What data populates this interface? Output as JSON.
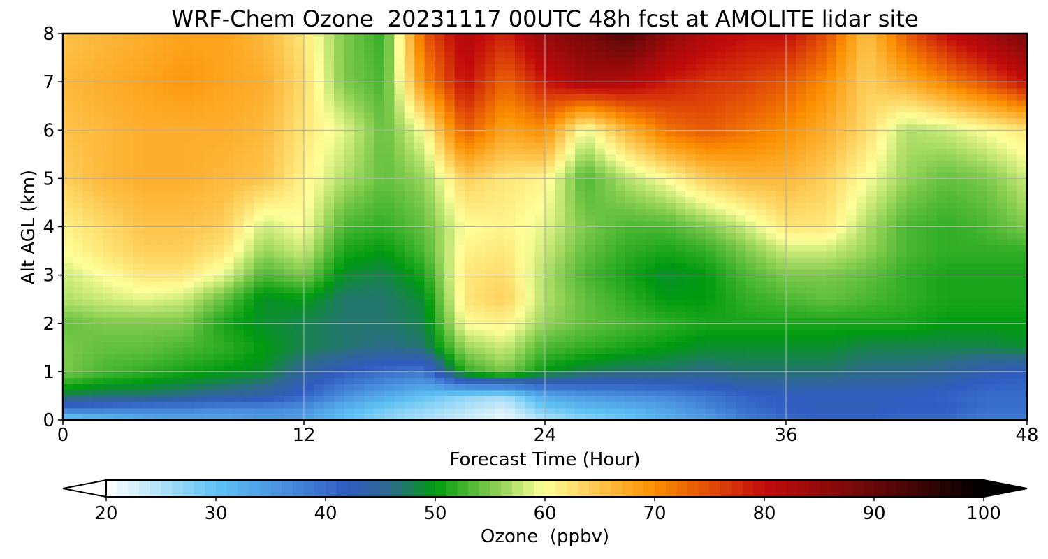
{
  "chart_data": {
    "type": "heatmap",
    "title": "WRF-Chem Ozone  20231117 00UTC 48h fcst at AMOLITE lidar site",
    "xlabel": "Forecast Time (Hour)",
    "ylabel": "Alt AGL (km)",
    "xlim": [
      0,
      48
    ],
    "ylim": [
      0,
      8
    ],
    "xticks": [
      0,
      12,
      24,
      36,
      48
    ],
    "yticks": [
      0,
      1,
      2,
      3,
      4,
      5,
      6,
      7,
      8
    ],
    "grid": true,
    "x": [
      0,
      2,
      4,
      6,
      8,
      10,
      12,
      14,
      16,
      18,
      20,
      22,
      24,
      26,
      28,
      30,
      32,
      34,
      36,
      38,
      40,
      42,
      44,
      46,
      48
    ],
    "y": [
      0,
      0.25,
      0.5,
      1,
      1.5,
      2,
      2.5,
      3,
      3.5,
      4,
      5,
      6,
      7,
      8
    ],
    "z": [
      [
        28,
        30,
        32,
        33,
        33,
        35,
        34,
        30,
        27,
        25,
        23,
        21,
        25,
        27,
        29,
        32,
        34,
        38,
        40,
        41,
        41,
        40,
        40,
        38,
        38
      ],
      [
        40,
        39,
        38,
        38,
        37,
        37,
        36,
        32,
        29,
        27,
        25,
        23,
        29,
        31,
        32,
        34,
        37,
        40,
        42,
        43,
        43,
        42,
        42,
        40,
        40
      ],
      [
        48,
        47,
        47,
        46,
        45,
        44,
        41,
        36,
        33,
        30,
        27,
        26,
        33,
        35,
        36,
        37,
        39,
        41,
        42,
        42,
        42,
        42,
        41,
        40,
        40
      ],
      [
        55,
        53,
        52,
        51,
        50,
        49,
        45,
        42,
        40,
        39,
        52,
        55,
        50,
        48,
        47,
        47,
        46,
        47,
        47,
        47,
        46,
        46,
        45,
        43,
        42
      ],
      [
        55,
        54,
        54,
        53,
        52,
        50,
        48,
        47,
        46,
        47,
        56,
        58,
        53,
        52,
        51,
        50,
        49,
        49,
        49,
        49,
        48,
        48,
        48,
        48,
        49
      ],
      [
        54,
        55,
        55,
        55,
        51,
        49,
        48,
        47,
        47,
        48,
        60,
        61,
        56,
        54,
        53,
        52,
        51,
        51,
        51,
        51,
        51,
        51,
        50,
        50,
        50
      ],
      [
        57,
        58,
        59,
        58,
        54,
        49,
        50,
        47,
        47,
        49,
        62,
        64,
        57,
        54,
        52,
        50,
        50,
        52,
        53,
        54,
        53,
        52,
        51,
        51,
        51
      ],
      [
        58,
        60,
        62,
        62,
        59,
        53,
        55,
        49,
        48,
        51,
        62,
        63,
        57,
        53,
        51,
        49,
        50,
        53,
        55,
        55,
        54,
        52,
        51,
        51,
        51
      ],
      [
        60,
        62,
        64,
        64,
        62,
        56,
        58,
        51,
        50,
        53,
        61,
        62,
        58,
        54,
        52,
        51,
        52,
        55,
        58,
        58,
        56,
        53,
        52,
        52,
        52
      ],
      [
        61,
        63,
        65,
        65,
        64,
        58,
        60,
        53,
        52,
        54,
        60,
        61,
        59,
        55,
        53,
        53,
        55,
        58,
        62,
        62,
        57,
        53,
        52,
        53,
        55
      ],
      [
        64,
        66,
        67,
        67,
        66,
        65,
        61,
        57,
        54,
        56,
        64,
        62,
        61,
        53,
        57,
        60,
        64,
        66,
        66,
        64,
        60,
        56,
        54,
        55,
        58
      ],
      [
        65,
        66,
        67,
        67,
        67,
        66,
        62,
        59,
        54,
        60,
        74,
        68,
        70,
        59,
        66,
        72,
        74,
        72,
        70,
        67,
        63,
        57,
        58,
        60,
        62
      ],
      [
        66,
        67,
        68,
        69,
        68,
        67,
        63,
        55,
        53,
        70,
        80,
        73,
        79,
        83,
        82,
        79,
        77,
        76,
        74,
        70,
        64,
        67,
        71,
        75,
        80
      ],
      [
        65,
        66,
        67,
        68,
        68,
        66,
        62,
        55,
        52,
        74,
        82,
        78,
        85,
        88,
        92,
        86,
        82,
        80,
        80,
        75,
        65,
        74,
        80,
        84,
        88
      ]
    ],
    "colorbar": {
      "label": "Ozone  (ppbv)",
      "ticks": [
        20,
        30,
        40,
        50,
        60,
        70,
        80,
        90,
        100
      ],
      "extend": "both",
      "stops": [
        {
          "v": 20,
          "c": "#ffffff"
        },
        {
          "v": 23,
          "c": "#d0eefa"
        },
        {
          "v": 30,
          "c": "#5ec2f3"
        },
        {
          "v": 36,
          "c": "#4a90de"
        },
        {
          "v": 42,
          "c": "#2f5cc0"
        },
        {
          "v": 46,
          "c": "#2e6a8c"
        },
        {
          "v": 50,
          "c": "#009b0f"
        },
        {
          "v": 55,
          "c": "#7cc94a"
        },
        {
          "v": 60,
          "c": "#ffff99"
        },
        {
          "v": 65,
          "c": "#fdc34a"
        },
        {
          "v": 70,
          "c": "#fc8f00"
        },
        {
          "v": 75,
          "c": "#e24d07"
        },
        {
          "v": 80,
          "c": "#c20b0b"
        },
        {
          "v": 88,
          "c": "#7a0a0a"
        },
        {
          "v": 95,
          "c": "#340404"
        },
        {
          "v": 100,
          "c": "#000000"
        }
      ]
    }
  }
}
